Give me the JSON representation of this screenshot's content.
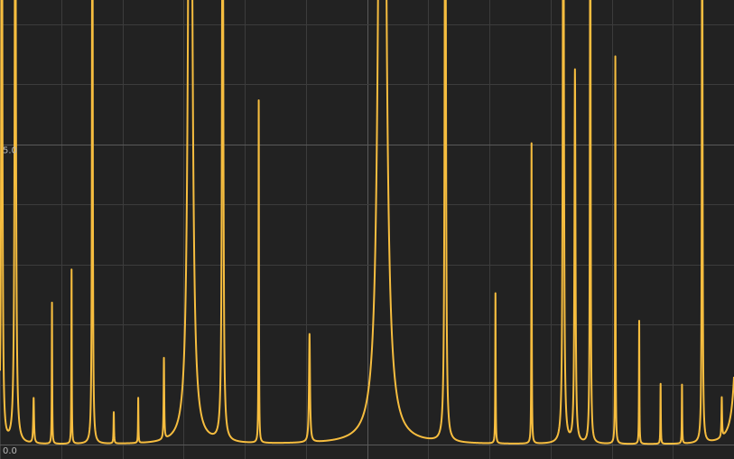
{
  "chart_data": {
    "type": "line",
    "title": "",
    "xlabel": "",
    "ylabel": "",
    "ylim": [
      0,
      7.4
    ],
    "xlim": [
      0,
      12
    ],
    "grid": true,
    "y_ticks": [
      {
        "value": 0,
        "label": "0.0"
      },
      {
        "value": 5,
        "label": "5.0"
      }
    ],
    "colors": {
      "background": "#222222",
      "grid_minor": "#3c3c3c",
      "grid_major": "#5a5a5a",
      "line": "#f6bd3f"
    },
    "series": [
      {
        "peaks": [
          {
            "x": 0.03,
            "height": 12.0,
            "width": 0.01
          },
          {
            "x": 0.25,
            "height": 11.0,
            "width": 0.012
          },
          {
            "x": 0.55,
            "height": 0.75,
            "width": 0.008
          },
          {
            "x": 0.85,
            "height": 2.35,
            "width": 0.004
          },
          {
            "x": 1.17,
            "height": 2.9,
            "width": 0.004
          },
          {
            "x": 1.51,
            "height": 14.0,
            "width": 0.006
          },
          {
            "x": 1.86,
            "height": 0.52,
            "width": 0.005
          },
          {
            "x": 2.26,
            "height": 0.75,
            "width": 0.004
          },
          {
            "x": 2.68,
            "height": 1.35,
            "width": 0.006
          },
          {
            "x": 3.11,
            "height": 18.0,
            "width": 0.03
          },
          {
            "x": 3.64,
            "height": 14.0,
            "width": 0.01
          },
          {
            "x": 4.23,
            "height": 5.7,
            "width": 0.004
          },
          {
            "x": 5.06,
            "height": 1.8,
            "width": 0.01
          },
          {
            "x": 6.25,
            "height": 30.0,
            "width": 0.04
          },
          {
            "x": 7.28,
            "height": 14.0,
            "width": 0.01
          },
          {
            "x": 8.1,
            "height": 2.5,
            "width": 0.004
          },
          {
            "x": 8.69,
            "height": 5.0,
            "width": 0.004
          },
          {
            "x": 9.21,
            "height": 12.0,
            "width": 0.01
          },
          {
            "x": 9.4,
            "height": 6.2,
            "width": 0.01
          },
          {
            "x": 9.65,
            "height": 12.0,
            "width": 0.006
          },
          {
            "x": 10.06,
            "height": 6.45,
            "width": 0.004
          },
          {
            "x": 10.45,
            "height": 2.05,
            "width": 0.004
          },
          {
            "x": 10.8,
            "height": 1.0,
            "width": 0.004
          },
          {
            "x": 11.15,
            "height": 0.98,
            "width": 0.004
          },
          {
            "x": 11.48,
            "height": 12.0,
            "width": 0.006
          },
          {
            "x": 11.8,
            "height": 0.66,
            "width": 0.006
          },
          {
            "x": 12.08,
            "height": 4.0,
            "width": 0.05
          }
        ]
      }
    ]
  }
}
